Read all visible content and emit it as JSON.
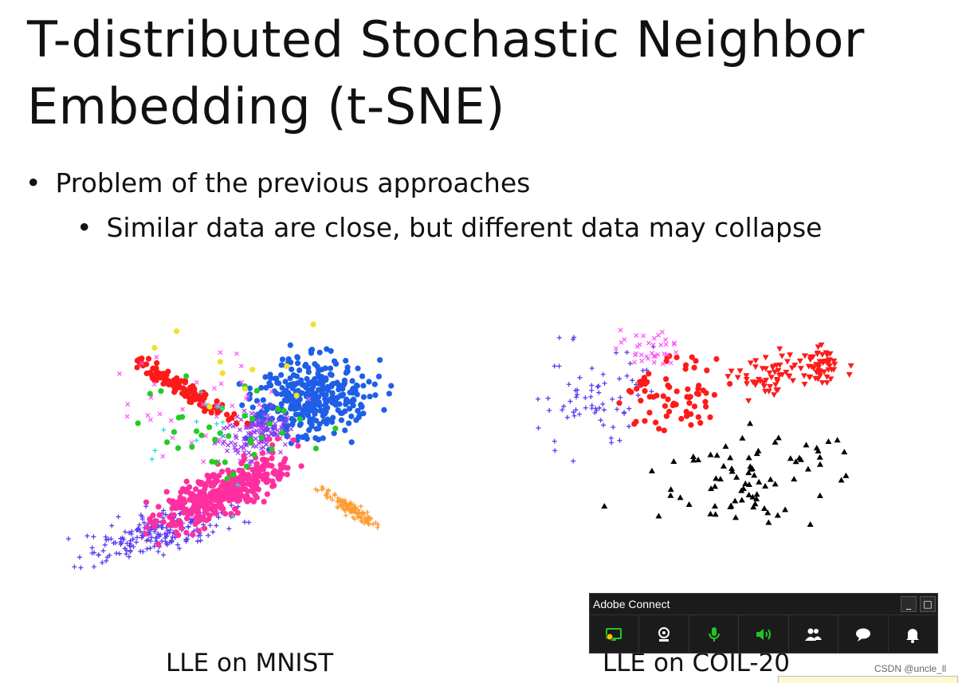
{
  "slide": {
    "title_line1": "T-distributed Stochastic Neighbor",
    "title_line2": "Embedding (t-SNE)",
    "bullets": [
      {
        "text": "Problem of the previous approaches",
        "level": 1
      },
      {
        "text": "Similar data are close, but different data may collapse",
        "level": 2
      }
    ],
    "bullet_glyph": "•"
  },
  "plots": {
    "mnist": {
      "caption": "LLE on MNIST",
      "colors": [
        "#1e5fe6",
        "#ff1a1a",
        "#ff2fa0",
        "#9b3df0",
        "#5a3cf0",
        "#ff9a2e",
        "#22cc22",
        "#ff55ff",
        "#22dddd",
        "#f0e030"
      ]
    },
    "coil": {
      "caption": "LLE on COIL-20",
      "colors": [
        "#000000",
        "#ff1a1a",
        "#5a3cf0",
        "#ff55ff"
      ]
    }
  },
  "adobe_connect": {
    "title": "Adobe Connect",
    "minimize_label": "_",
    "maximize_label": "□",
    "toolbar": [
      {
        "name": "share-screen-button",
        "icon": "share-screen-icon"
      },
      {
        "name": "camera-button",
        "icon": "webcam-icon"
      },
      {
        "name": "microphone-button",
        "icon": "microphone-icon"
      },
      {
        "name": "speaker-button",
        "icon": "speaker-icon"
      },
      {
        "name": "attendees-button",
        "icon": "attendees-icon"
      },
      {
        "name": "chat-button",
        "icon": "chat-icon"
      },
      {
        "name": "notifications-button",
        "icon": "bell-icon"
      }
    ],
    "accent_green": "#23c623"
  },
  "watermark": "CSDN @uncle_ll"
}
